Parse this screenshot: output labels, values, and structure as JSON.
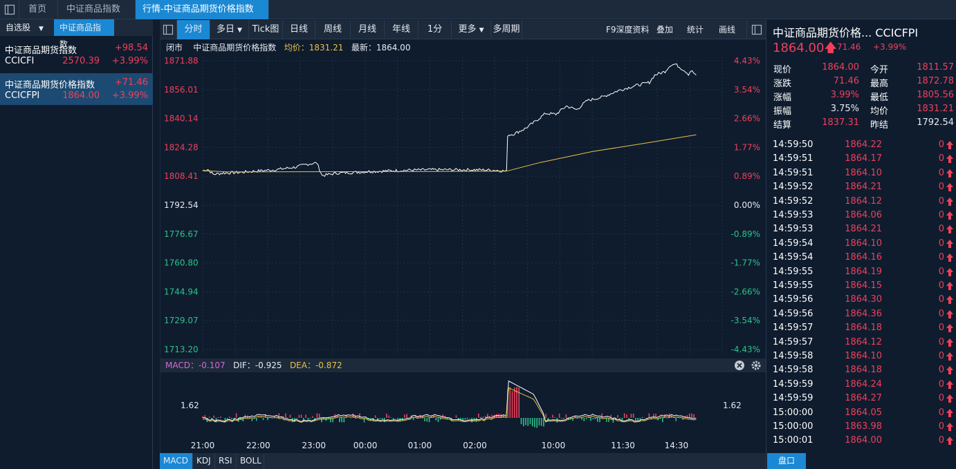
{
  "tabs": [
    {
      "label": "首页"
    },
    {
      "label": "中证商品指数"
    },
    {
      "label": "行情-中证商品期货价格指数",
      "close": "×"
    }
  ],
  "left": {
    "tab_watchlist": "自选股",
    "tab_caret": "▼",
    "tab_active": "中证商品指数",
    "items": [
      {
        "name": "中证商品期货指数",
        "code": "CCICFI",
        "change": "+98.54",
        "price": "2570.39",
        "pct": "+3.99%"
      },
      {
        "name": "中证商品期货价格指数",
        "code": "CCICFPI",
        "change": "+71.46",
        "price": "1864.00",
        "pct": "+3.99%"
      }
    ]
  },
  "toolbar": {
    "buttons": [
      "分时",
      "多日",
      "Tick图",
      "日线",
      "周线",
      "月线",
      "年线",
      "1分",
      "更多",
      "多周期"
    ],
    "caret": "▼",
    "right": [
      "F9深度资料",
      "叠加",
      "统计",
      "画线"
    ]
  },
  "chart_info": {
    "status": "闭市",
    "name": "中证商品期货价格指数",
    "avg_label": "均价：1831.21",
    "last_label": "最新：1864.00"
  },
  "macd": {
    "macd": "MACD：-0.107",
    "dif": "DIF：-0.925",
    "dea": "DEA：-0.872",
    "level": "1.62"
  },
  "indicator_tabs": [
    "MACD",
    "KDJ",
    "RSI",
    "BOLL"
  ],
  "colors": {
    "up": "#f0405a",
    "down": "#2ec28b",
    "avg": "#e8c24a",
    "accent": "#1b88d4"
  },
  "chart_data": {
    "type": "line",
    "title": "中证商品期货价格指数",
    "prev_close": 1792.54,
    "ylim": [
      1713.2,
      1871.88
    ],
    "y_ticks_left": [
      "1871.88",
      "1856.01",
      "1840.14",
      "1824.28",
      "1808.41",
      "1792.54",
      "1776.67",
      "1760.80",
      "1744.94",
      "1729.07",
      "1713.20"
    ],
    "y_ticks_right": [
      "4.43%",
      "3.54%",
      "2.66%",
      "1.77%",
      "0.89%",
      "0.00%",
      "-0.89%",
      "-1.77%",
      "-2.66%",
      "-3.54%",
      "-4.43%"
    ],
    "x_labels": [
      "21:00",
      "22:00",
      "23:00",
      "00:00",
      "01:00",
      "02:00",
      "10:00",
      "11:30",
      "14:30"
    ],
    "x_label_pos": [
      0.0,
      0.107,
      0.214,
      0.313,
      0.418,
      0.524,
      0.675,
      0.809,
      0.912
    ],
    "series": [
      {
        "name": "最新",
        "x": [
          0.0,
          0.01,
          0.02,
          0.04,
          0.07,
          0.1,
          0.14,
          0.18,
          0.2,
          0.22,
          0.225,
          0.23,
          0.26,
          0.29,
          0.32,
          0.36,
          0.4,
          0.44,
          0.48,
          0.52,
          0.56,
          0.585,
          0.587,
          0.6,
          0.62,
          0.64,
          0.66,
          0.68,
          0.7,
          0.72,
          0.74,
          0.77,
          0.8,
          0.83,
          0.86,
          0.87,
          0.89,
          0.9,
          0.91,
          0.93,
          0.935,
          0.94,
          0.95
        ],
        "values": [
          1811.5,
          1812.2,
          1809.5,
          1810.2,
          1810.5,
          1811.2,
          1812.0,
          1813.5,
          1815.0,
          1815.8,
          1812.0,
          1808.8,
          1810.2,
          1810.5,
          1811.0,
          1811.4,
          1811.8,
          1812.0,
          1812.0,
          1812.0,
          1811.8,
          1811.2,
          1831.0,
          1831.8,
          1834.5,
          1838.5,
          1843.0,
          1842.5,
          1847.0,
          1845.0,
          1850.0,
          1852.0,
          1855.5,
          1858.0,
          1860.0,
          1864.0,
          1866.0,
          1869.5,
          1870.0,
          1866.0,
          1864.5,
          1866.5,
          1864.0
        ]
      },
      {
        "name": "均价",
        "x": [
          0.0,
          0.05,
          0.2,
          0.4,
          0.585,
          0.65,
          0.75,
          0.85,
          0.95
        ],
        "values": [
          1811.5,
          1810.8,
          1810.9,
          1811.0,
          1811.2,
          1816.0,
          1822.0,
          1826.5,
          1831.21
        ]
      }
    ],
    "grid": true
  }
}
